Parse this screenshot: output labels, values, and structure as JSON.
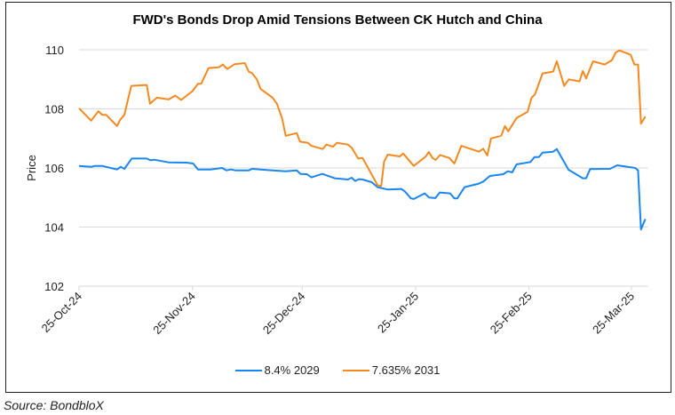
{
  "chart_data": {
    "type": "line",
    "title": "FWD's Bonds Drop Amid Tensions Between CK Hutch and China",
    "xlabel": "",
    "ylabel": "Price",
    "x_unit": "days since 25-Oct-24",
    "xlim": [
      0,
      155
    ],
    "ylim": [
      102,
      110
    ],
    "yticks": [
      102,
      104,
      106,
      108,
      110
    ],
    "xticks": [
      {
        "day": 0,
        "label": "25-Oct-24"
      },
      {
        "day": 31,
        "label": "25-Nov-24"
      },
      {
        "day": 61,
        "label": "25-Dec-24"
      },
      {
        "day": 92,
        "label": "25-Jan-25"
      },
      {
        "day": 123,
        "label": "25-Feb-25"
      },
      {
        "day": 151,
        "label": "25-Mar-25"
      }
    ],
    "grid": true,
    "legend_position": "bottom",
    "series": [
      {
        "name": "8.4% 2029",
        "color": "#1a86f0",
        "points": [
          [
            0,
            106.07
          ],
          [
            3.5,
            106.04
          ],
          [
            4.3,
            106.07
          ],
          [
            6.3,
            106.07
          ],
          [
            10.4,
            105.95
          ],
          [
            11.4,
            106.04
          ],
          [
            12.4,
            105.97
          ],
          [
            14.4,
            106.32
          ],
          [
            18.5,
            106.32
          ],
          [
            19.5,
            106.26
          ],
          [
            20.5,
            106.28
          ],
          [
            24.5,
            106.19
          ],
          [
            29.4,
            106.18
          ],
          [
            31.2,
            106.15
          ],
          [
            32.5,
            105.95
          ],
          [
            35.9,
            105.95
          ],
          [
            39.1,
            106.0
          ],
          [
            40.3,
            105.92
          ],
          [
            41.5,
            105.95
          ],
          [
            42.7,
            105.92
          ],
          [
            46.4,
            105.92
          ],
          [
            47.3,
            105.97
          ],
          [
            49.6,
            105.95
          ],
          [
            52.9,
            105.92
          ],
          [
            56.5,
            105.89
          ],
          [
            59.5,
            105.92
          ],
          [
            60.5,
            105.8
          ],
          [
            62.3,
            105.79
          ],
          [
            63.5,
            105.68
          ],
          [
            66.5,
            105.8
          ],
          [
            69.9,
            105.65
          ],
          [
            73.5,
            105.61
          ],
          [
            74.5,
            105.67
          ],
          [
            75.5,
            105.56
          ],
          [
            76.5,
            105.62
          ],
          [
            77.5,
            105.61
          ],
          [
            80.0,
            105.52
          ],
          [
            81.6,
            105.35
          ],
          [
            84.4,
            105.27
          ],
          [
            88.1,
            105.29
          ],
          [
            89.1,
            105.2
          ],
          [
            90.7,
            104.97
          ],
          [
            91.5,
            104.95
          ],
          [
            94.5,
            105.14
          ],
          [
            95.7,
            105.0
          ],
          [
            97.4,
            104.98
          ],
          [
            98.6,
            105.17
          ],
          [
            101.4,
            105.14
          ],
          [
            102.6,
            104.97
          ],
          [
            103.4,
            104.97
          ],
          [
            105.4,
            105.35
          ],
          [
            109.3,
            105.47
          ],
          [
            110.5,
            105.54
          ],
          [
            112.3,
            105.73
          ],
          [
            116.0,
            105.79
          ],
          [
            117.2,
            105.89
          ],
          [
            118.4,
            105.85
          ],
          [
            119.6,
            106.12
          ],
          [
            123.4,
            106.2
          ],
          [
            124.5,
            106.37
          ],
          [
            125.7,
            106.37
          ],
          [
            126.7,
            106.52
          ],
          [
            129.6,
            106.55
          ],
          [
            130.6,
            106.64
          ],
          [
            133.8,
            105.94
          ],
          [
            137.7,
            105.65
          ],
          [
            138.6,
            105.65
          ],
          [
            139.7,
            105.96
          ],
          [
            145.1,
            105.97
          ],
          [
            147.1,
            106.09
          ],
          [
            152.0,
            106.0
          ],
          [
            152.8,
            105.92
          ],
          [
            153.6,
            103.92
          ],
          [
            154.8,
            104.27
          ]
        ]
      },
      {
        "name": "7.635% 2031",
        "color": "#f5891f",
        "points": [
          [
            0,
            108.02
          ],
          [
            3.3,
            107.6
          ],
          [
            5.3,
            107.92
          ],
          [
            6.3,
            107.8
          ],
          [
            7.4,
            107.8
          ],
          [
            10.4,
            107.42
          ],
          [
            11.2,
            107.62
          ],
          [
            12.4,
            107.8
          ],
          [
            13.2,
            108.23
          ],
          [
            14.3,
            108.78
          ],
          [
            18.5,
            108.81
          ],
          [
            19.4,
            108.17
          ],
          [
            21.3,
            108.38
          ],
          [
            24.5,
            108.32
          ],
          [
            26.3,
            108.45
          ],
          [
            27.9,
            108.3
          ],
          [
            31.0,
            108.6
          ],
          [
            32.5,
            108.85
          ],
          [
            33.4,
            108.85
          ],
          [
            35.4,
            109.38
          ],
          [
            38.3,
            109.41
          ],
          [
            39.3,
            109.5
          ],
          [
            40.5,
            109.35
          ],
          [
            42.5,
            109.51
          ],
          [
            45.3,
            109.55
          ],
          [
            46.4,
            109.26
          ],
          [
            47.3,
            109.21
          ],
          [
            48.6,
            109.0
          ],
          [
            49.6,
            108.68
          ],
          [
            52.9,
            108.38
          ],
          [
            54.1,
            108.17
          ],
          [
            55.5,
            107.68
          ],
          [
            56.5,
            107.09
          ],
          [
            59.5,
            107.18
          ],
          [
            60.4,
            106.89
          ],
          [
            62.6,
            106.85
          ],
          [
            63.5,
            106.75
          ],
          [
            66.6,
            106.64
          ],
          [
            67.6,
            106.79
          ],
          [
            69.4,
            106.72
          ],
          [
            70.5,
            106.85
          ],
          [
            73.5,
            106.79
          ],
          [
            74.5,
            106.69
          ],
          [
            76.3,
            106.32
          ],
          [
            77.5,
            106.34
          ],
          [
            81.6,
            105.42
          ],
          [
            82.6,
            105.39
          ],
          [
            83.4,
            106.22
          ],
          [
            84.4,
            106.45
          ],
          [
            87.7,
            106.39
          ],
          [
            88.6,
            106.49
          ],
          [
            91.5,
            106.07
          ],
          [
            94.8,
            106.39
          ],
          [
            95.6,
            106.54
          ],
          [
            96.6,
            106.34
          ],
          [
            97.5,
            106.27
          ],
          [
            98.7,
            106.44
          ],
          [
            101.2,
            106.34
          ],
          [
            102.6,
            106.15
          ],
          [
            104.5,
            106.75
          ],
          [
            109.3,
            106.55
          ],
          [
            110.5,
            106.65
          ],
          [
            111.6,
            106.42
          ],
          [
            112.6,
            107.0
          ],
          [
            115.4,
            107.09
          ],
          [
            116.4,
            107.42
          ],
          [
            117.3,
            107.24
          ],
          [
            119.6,
            107.69
          ],
          [
            122.6,
            107.9
          ],
          [
            123.7,
            108.38
          ],
          [
            124.6,
            108.48
          ],
          [
            126.7,
            109.2
          ],
          [
            129.6,
            109.26
          ],
          [
            130.6,
            109.61
          ],
          [
            132.6,
            108.78
          ],
          [
            133.9,
            109.0
          ],
          [
            136.8,
            108.93
          ],
          [
            137.7,
            109.28
          ],
          [
            138.6,
            109.03
          ],
          [
            140.5,
            109.61
          ],
          [
            143.7,
            109.5
          ],
          [
            145.7,
            109.65
          ],
          [
            146.7,
            109.91
          ],
          [
            147.7,
            109.98
          ],
          [
            150.8,
            109.83
          ],
          [
            151.8,
            109.5
          ],
          [
            152.8,
            109.5
          ],
          [
            153.6,
            107.5
          ],
          [
            154.8,
            107.74
          ]
        ]
      }
    ]
  },
  "source": "Source: BondbloX"
}
